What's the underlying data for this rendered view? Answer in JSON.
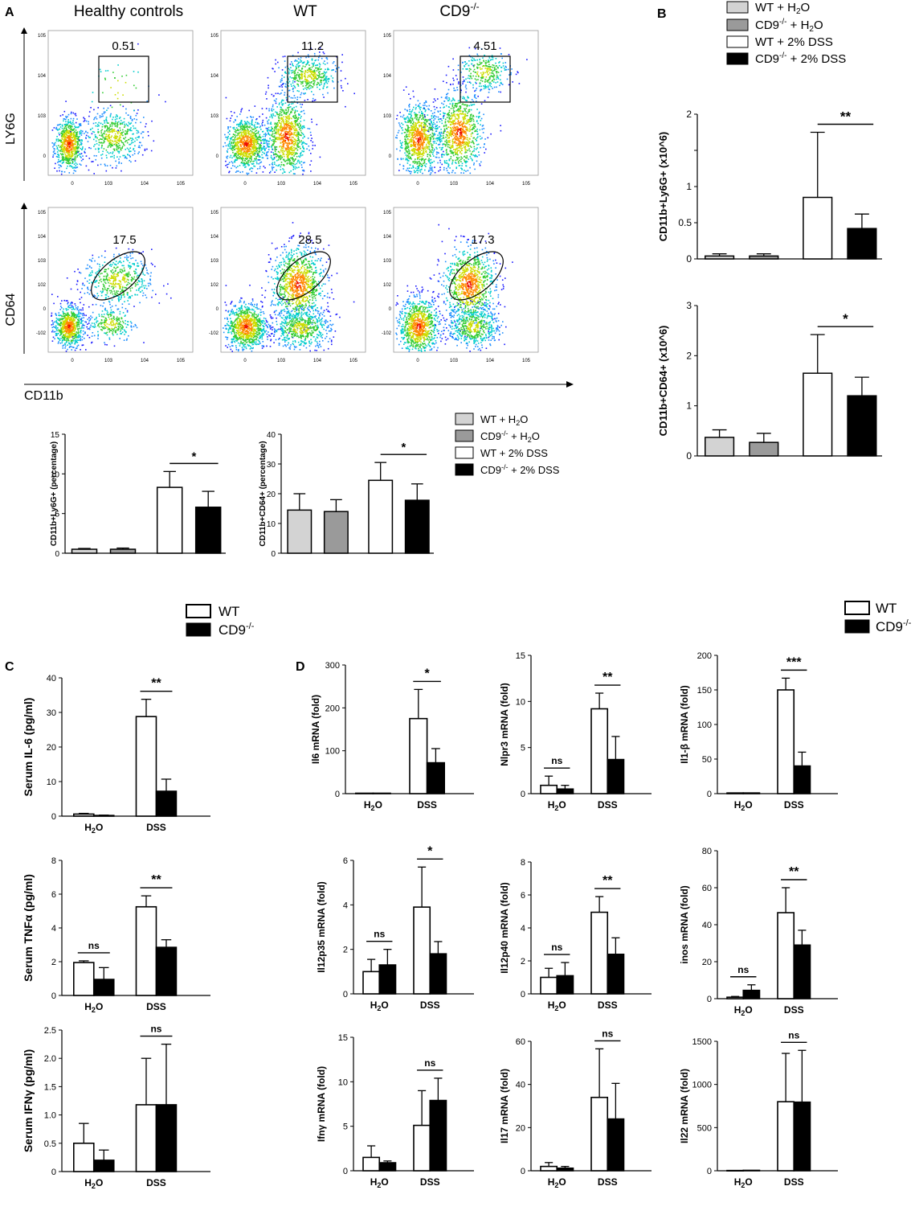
{
  "panels": {
    "A": "A",
    "B": "B",
    "C": "C",
    "D": "D"
  },
  "flow": {
    "columns": [
      "Healthy controls",
      "WT",
      "CD9-/-"
    ],
    "row_labels": [
      "LY6G",
      "CD64"
    ],
    "x_label": "CD11b",
    "gates_ly6g": [
      "0.51",
      "11.2",
      "4.51"
    ],
    "gates_cd64": [
      "17.5",
      "28.5",
      "17.3"
    ],
    "tick_labels_x": [
      "0",
      "10^3",
      "10^4",
      "10^5"
    ],
    "tick_labels_y": [
      "-10^2",
      "0",
      "10^2",
      "10^3",
      "10^4",
      "10^5"
    ]
  },
  "legends": {
    "four_group": [
      "WT + H2O",
      "CD9-/- + H2O",
      "WT + 2% DSS",
      "CD9-/- + 2% DSS"
    ],
    "two_group": [
      "WT",
      "CD9-/-"
    ]
  },
  "colors": {
    "wt_h2o": "#d3d3d3",
    "cd9_h2o": "#9a9a9a",
    "wt_dss": "#ffffff",
    "cd9_dss": "#000000"
  },
  "chart_data": [
    {
      "id": "A_ly6g_pct",
      "type": "bar",
      "ylabel": "CD11b+Ly6G+ (percentage)",
      "ylim": [
        0,
        15
      ],
      "yticks": [
        0,
        5,
        10,
        15
      ],
      "categories": [
        "WT + H2O",
        "CD9-/- + H2O",
        "WT + 2% DSS",
        "CD9-/- + 2% DSS"
      ],
      "values": [
        0.5,
        0.5,
        8.3,
        5.8
      ],
      "errors": [
        0.1,
        0.15,
        2.0,
        2.0
      ],
      "significance": [
        {
          "from": 2,
          "to": 3,
          "label": "*"
        }
      ]
    },
    {
      "id": "A_cd64_pct",
      "type": "bar",
      "ylabel": "CD11b+CD64+ (percentage)",
      "ylim": [
        0,
        40
      ],
      "yticks": [
        0,
        10,
        20,
        30,
        40
      ],
      "categories": [
        "WT + H2O",
        "CD9-/- + H2O",
        "WT + 2% DSS",
        "CD9-/- + 2% DSS"
      ],
      "values": [
        14.5,
        14.0,
        24.5,
        17.8
      ],
      "errors": [
        5.5,
        4.0,
        6.0,
        5.5
      ],
      "significance": [
        {
          "from": 2,
          "to": 3,
          "label": "*"
        }
      ]
    },
    {
      "id": "B_ly6g_abs",
      "type": "bar",
      "ylabel": "CD11b+Ly6G+ (x10^6)",
      "ylim": [
        0,
        2
      ],
      "yticks": [
        0,
        0.5,
        1,
        1.5,
        2
      ],
      "ytick_labels": [
        "0",
        "0.5",
        "1",
        "",
        "2"
      ],
      "categories": [
        "WT + H2O",
        "CD9-/- + H2O",
        "WT + 2% DSS",
        "CD9-/- + 2% DSS"
      ],
      "values": [
        0.04,
        0.04,
        0.85,
        0.42
      ],
      "errors": [
        0.03,
        0.03,
        0.9,
        0.2
      ],
      "significance": [
        {
          "from": 2,
          "to": 3,
          "label": "**"
        }
      ]
    },
    {
      "id": "B_cd64_abs",
      "type": "bar",
      "ylabel": "CD11b+CD64+ (x10^6)",
      "ylim": [
        0,
        3
      ],
      "yticks": [
        0,
        1,
        2,
        3
      ],
      "categories": [
        "WT + H2O",
        "CD9-/- + H2O",
        "WT + 2% DSS",
        "CD9-/- + 2% DSS"
      ],
      "values": [
        0.37,
        0.27,
        1.65,
        1.2
      ],
      "errors": [
        0.15,
        0.18,
        0.77,
        0.37
      ],
      "significance": [
        {
          "from": 2,
          "to": 3,
          "label": "*"
        }
      ]
    },
    {
      "id": "C_il6",
      "type": "bar",
      "ylabel": "Serum IL-6 (pg/ml)",
      "ylim": [
        0,
        40
      ],
      "yticks": [
        0,
        10,
        20,
        30,
        40
      ],
      "categories": [
        "H2O",
        "DSS"
      ],
      "series": [
        {
          "name": "WT",
          "values": [
            0.6,
            28.8
          ],
          "errors": [
            0.2,
            5.0
          ]
        },
        {
          "name": "CD9-/-",
          "values": [
            0.2,
            7.2
          ],
          "errors": [
            0.1,
            3.5
          ]
        }
      ],
      "significance": [
        {
          "group": 1,
          "label": "**"
        }
      ]
    },
    {
      "id": "C_tnfa",
      "type": "bar",
      "ylabel": "Serum TNFα (pg/ml)",
      "ylim": [
        0,
        8
      ],
      "yticks": [
        0,
        2,
        4,
        6,
        8
      ],
      "categories": [
        "H2O",
        "DSS"
      ],
      "series": [
        {
          "name": "WT",
          "values": [
            1.95,
            5.25
          ],
          "errors": [
            0.1,
            0.65
          ]
        },
        {
          "name": "CD9-/-",
          "values": [
            0.95,
            2.85
          ],
          "errors": [
            0.7,
            0.45
          ]
        }
      ],
      "significance": [
        {
          "group": 0,
          "label": "ns"
        },
        {
          "group": 1,
          "label": "**"
        }
      ]
    },
    {
      "id": "C_ifng",
      "type": "bar",
      "ylabel": "Serum IFNγ (pg/ml)",
      "ylim": [
        0,
        2.5
      ],
      "yticks": [
        0,
        0.5,
        1.0,
        1.5,
        2.0,
        2.5
      ],
      "ytick_labels": [
        "0",
        "0.5",
        "1.0",
        "1.5",
        "2.0",
        "2.5"
      ],
      "categories": [
        "H2O",
        "DSS"
      ],
      "series": [
        {
          "name": "WT",
          "values": [
            0.5,
            1.18
          ],
          "errors": [
            0.35,
            0.82
          ]
        },
        {
          "name": "CD9-/-",
          "values": [
            0.2,
            1.18
          ],
          "errors": [
            0.18,
            1.07
          ]
        }
      ],
      "significance": [
        {
          "group": 1,
          "label": "ns"
        }
      ]
    },
    {
      "id": "D_il6",
      "type": "bar",
      "ylabel": "Il6 mRNA (fold)",
      "ylim": [
        0,
        300
      ],
      "yticks": [
        0,
        100,
        200,
        300
      ],
      "categories": [
        "H2O",
        "DSS"
      ],
      "series": [
        {
          "name": "WT",
          "values": [
            1,
            175
          ],
          "errors": [
            0,
            68
          ]
        },
        {
          "name": "CD9-/-",
          "values": [
            1,
            72
          ],
          "errors": [
            0,
            33
          ]
        }
      ],
      "significance": [
        {
          "group": 1,
          "label": "*"
        }
      ]
    },
    {
      "id": "D_nlrp3",
      "type": "bar",
      "ylabel": "Nlpr3 mRNA (fold)",
      "ylim": [
        0,
        15
      ],
      "yticks": [
        0,
        5,
        10,
        15
      ],
      "categories": [
        "H2O",
        "DSS"
      ],
      "series": [
        {
          "name": "WT",
          "values": [
            0.9,
            9.2
          ],
          "errors": [
            1.0,
            1.7
          ]
        },
        {
          "name": "CD9-/-",
          "values": [
            0.5,
            3.7
          ],
          "errors": [
            0.4,
            2.5
          ]
        }
      ],
      "significance": [
        {
          "group": 0,
          "label": "ns"
        },
        {
          "group": 1,
          "label": "**"
        }
      ]
    },
    {
      "id": "D_il1b",
      "type": "bar",
      "ylabel": "Il1-β mRNA (fold)",
      "ylim": [
        0,
        200
      ],
      "yticks": [
        0,
        50,
        100,
        150,
        200
      ],
      "categories": [
        "H2O",
        "DSS"
      ],
      "series": [
        {
          "name": "WT",
          "values": [
            1,
            150
          ],
          "errors": [
            0,
            17
          ]
        },
        {
          "name": "CD9-/-",
          "values": [
            1,
            40
          ],
          "errors": [
            0,
            20
          ]
        }
      ],
      "significance": [
        {
          "group": 1,
          "label": "***"
        }
      ]
    },
    {
      "id": "D_il12p35",
      "type": "bar",
      "ylabel": "Il12p35 mRNA (fold)",
      "ylim": [
        0,
        6
      ],
      "yticks": [
        0,
        2,
        4,
        6
      ],
      "categories": [
        "H2O",
        "DSS"
      ],
      "series": [
        {
          "name": "WT",
          "values": [
            1.0,
            3.9
          ],
          "errors": [
            0.55,
            1.8
          ]
        },
        {
          "name": "CD9-/-",
          "values": [
            1.3,
            1.8
          ],
          "errors": [
            0.7,
            0.55
          ]
        }
      ],
      "significance": [
        {
          "group": 0,
          "label": "ns"
        },
        {
          "group": 1,
          "label": "*"
        }
      ]
    },
    {
      "id": "D_il12p40",
      "type": "bar",
      "ylabel": "Il12p40 mRNA (fold)",
      "ylim": [
        0,
        8
      ],
      "yticks": [
        0,
        2,
        4,
        6,
        8
      ],
      "categories": [
        "H2O",
        "DSS"
      ],
      "series": [
        {
          "name": "WT",
          "values": [
            1.0,
            4.95
          ],
          "errors": [
            0.55,
            0.95
          ]
        },
        {
          "name": "CD9-/-",
          "values": [
            1.1,
            2.4
          ],
          "errors": [
            0.8,
            1.0
          ]
        }
      ],
      "significance": [
        {
          "group": 0,
          "label": "ns"
        },
        {
          "group": 1,
          "label": "**"
        }
      ]
    },
    {
      "id": "D_inos",
      "type": "bar",
      "ylabel": "inos mRNA (fold)",
      "ylim": [
        0,
        80
      ],
      "yticks": [
        0,
        20,
        40,
        60,
        80
      ],
      "categories": [
        "H2O",
        "DSS"
      ],
      "series": [
        {
          "name": "WT",
          "values": [
            0.8,
            46.5
          ],
          "errors": [
            0.4,
            13.5
          ]
        },
        {
          "name": "CD9-/-",
          "values": [
            4.5,
            29
          ],
          "errors": [
            3.0,
            8.0
          ]
        }
      ],
      "significance": [
        {
          "group": 0,
          "label": "ns"
        },
        {
          "group": 1,
          "label": "**"
        }
      ]
    },
    {
      "id": "D_ifng",
      "type": "bar",
      "ylabel": "Ifnγ mRNA (fold)",
      "ylim": [
        0,
        15
      ],
      "yticks": [
        0,
        5,
        10,
        15
      ],
      "categories": [
        "H2O",
        "DSS"
      ],
      "series": [
        {
          "name": "WT",
          "values": [
            1.5,
            5.1
          ],
          "errors": [
            1.3,
            3.9
          ]
        },
        {
          "name": "CD9-/-",
          "values": [
            0.9,
            7.9
          ],
          "errors": [
            0.2,
            2.5
          ]
        }
      ],
      "significance": [
        {
          "group": 1,
          "label": "ns"
        }
      ]
    },
    {
      "id": "D_il17",
      "type": "bar",
      "ylabel": "Il17 mRNA (fold)",
      "ylim": [
        0,
        60
      ],
      "yticks": [
        0,
        20,
        40,
        60
      ],
      "categories": [
        "H2O",
        "DSS"
      ],
      "series": [
        {
          "name": "WT",
          "values": [
            2,
            34
          ],
          "errors": [
            1.8,
            22.5
          ]
        },
        {
          "name": "CD9-/-",
          "values": [
            1.2,
            24
          ],
          "errors": [
            0.8,
            16.5
          ]
        }
      ],
      "significance": [
        {
          "group": 1,
          "label": "ns"
        }
      ]
    },
    {
      "id": "D_il22",
      "type": "bar",
      "ylabel": "Il22 mRNA (fold)",
      "ylim": [
        0,
        1500
      ],
      "yticks": [
        0,
        500,
        1000,
        1500
      ],
      "categories": [
        "H2O",
        "DSS"
      ],
      "series": [
        {
          "name": "WT",
          "values": [
            3,
            800
          ],
          "errors": [
            0,
            560
          ]
        },
        {
          "name": "CD9-/-",
          "values": [
            5,
            795
          ],
          "errors": [
            0,
            600
          ]
        }
      ],
      "significance": [
        {
          "group": 1,
          "label": "ns"
        }
      ]
    }
  ]
}
